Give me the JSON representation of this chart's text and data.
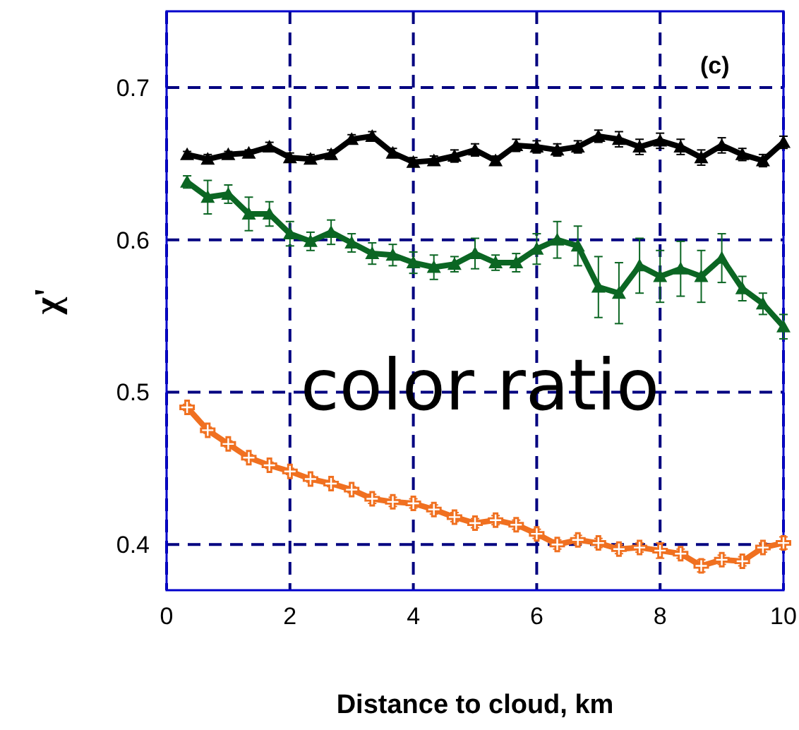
{
  "chart_data": {
    "type": "line",
    "xlabel": "Distance to cloud, km",
    "ylabel": "χ'",
    "xlim": [
      0,
      10
    ],
    "xticks": [
      0,
      2,
      4,
      6,
      8,
      10
    ],
    "ylim": [
      0.37,
      0.75
    ],
    "yticks": [
      0.4,
      0.5,
      0.6,
      0.7
    ],
    "grid": true,
    "line_style": "solid",
    "annotations": [
      "(c)",
      "color ratio"
    ],
    "x": [
      0.333,
      0.667,
      1,
      1.333,
      1.667,
      2,
      2.333,
      2.667,
      3,
      3.333,
      3.667,
      4,
      4.333,
      4.667,
      5,
      5.333,
      5.667,
      6,
      6.333,
      6.667,
      7,
      7.333,
      7.667,
      8,
      8.333,
      8.667,
      9,
      9.333,
      9.667,
      10
    ],
    "series": [
      {
        "color": "#000000",
        "marker": "triangle",
        "values": [
          0.656,
          0.653,
          0.656,
          0.657,
          0.661,
          0.654,
          0.653,
          0.656,
          0.666,
          0.668,
          0.657,
          0.651,
          0.652,
          0.655,
          0.659,
          0.652,
          0.662,
          0.661,
          0.659,
          0.661,
          0.668,
          0.666,
          0.661,
          0.665,
          0.661,
          0.654,
          0.662,
          0.656,
          0.652,
          0.664
        ],
        "errors": [
          0.002,
          0.003,
          0.002,
          0.002,
          0.003,
          0.003,
          0.003,
          0.003,
          0.003,
          0.003,
          0.003,
          0.003,
          0.003,
          0.004,
          0.004,
          0.003,
          0.004,
          0.004,
          0.004,
          0.004,
          0.004,
          0.005,
          0.005,
          0.005,
          0.005,
          0.005,
          0.005,
          0.004,
          0.004,
          0.004
        ]
      },
      {
        "color": "#0b6623",
        "marker": "triangle",
        "values": [
          0.638,
          0.628,
          0.63,
          0.617,
          0.617,
          0.604,
          0.599,
          0.605,
          0.598,
          0.591,
          0.59,
          0.585,
          0.582,
          0.584,
          0.591,
          0.585,
          0.585,
          0.594,
          0.6,
          0.596,
          0.569,
          0.565,
          0.583,
          0.576,
          0.581,
          0.576,
          0.588,
          0.568,
          0.558,
          0.543
        ],
        "errors": [
          0.004,
          0.011,
          0.006,
          0.011,
          0.008,
          0.008,
          0.006,
          0.008,
          0.006,
          0.007,
          0.007,
          0.007,
          0.008,
          0.005,
          0.01,
          0.005,
          0.006,
          0.01,
          0.012,
          0.013,
          0.02,
          0.02,
          0.018,
          0.017,
          0.018,
          0.017,
          0.016,
          0.008,
          0.007,
          0.008
        ]
      },
      {
        "color": "#f07020",
        "marker": "cross",
        "values": [
          0.49,
          0.475,
          0.466,
          0.457,
          0.452,
          0.448,
          0.443,
          0.44,
          0.436,
          0.43,
          0.428,
          0.427,
          0.423,
          0.418,
          0.414,
          0.416,
          0.413,
          0.407,
          0.4,
          0.403,
          0.401,
          0.397,
          0.398,
          0.396,
          0.394,
          0.386,
          0.39,
          0.389,
          0.398,
          0.401
        ],
        "errors": [
          0.002,
          0.002,
          0.002,
          0.002,
          0.002,
          0.002,
          0.002,
          0.002,
          0.002,
          0.003,
          0.003,
          0.003,
          0.003,
          0.003,
          0.003,
          0.003,
          0.003,
          0.003,
          0.003,
          0.003,
          0.003,
          0.003,
          0.003,
          0.005,
          0.003,
          0.004,
          0.003,
          0.003,
          0.003,
          0.004
        ]
      }
    ]
  }
}
